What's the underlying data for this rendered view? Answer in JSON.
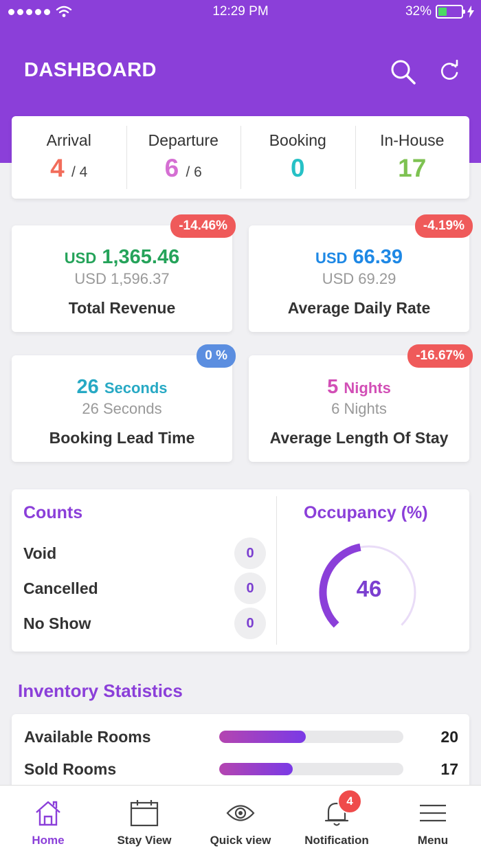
{
  "status_bar": {
    "time": "12:29 PM",
    "battery": "32%"
  },
  "header": {
    "title": "DASHBOARD",
    "search_icon": "search-icon",
    "refresh_icon": "refresh-icon"
  },
  "summary": {
    "arrival": {
      "label": "Arrival",
      "value": "4",
      "total": "/ 4",
      "color": "#f26d5b"
    },
    "departure": {
      "label": "Departure",
      "value": "6",
      "total": "/ 6",
      "color": "#d56fd3"
    },
    "booking": {
      "label": "Booking",
      "value": "0",
      "color": "#27c1c6"
    },
    "in_house": {
      "label": "In-House",
      "value": "17",
      "color": "#7ec252"
    }
  },
  "metrics": {
    "revenue": {
      "unit": "USD",
      "value": "1,365.46",
      "previous": "USD 1,596.37",
      "label": "Total Revenue",
      "change": "-14.46%",
      "color": "#25a35a"
    },
    "adr": {
      "unit": "USD",
      "value": "66.39",
      "previous": "USD 69.29",
      "label": "Average Daily Rate",
      "change": "-4.19%",
      "color": "#1e88e5"
    },
    "lead_time": {
      "value": "26",
      "unit": "Seconds",
      "previous": "26 Seconds",
      "label": "Booking Lead Time",
      "change": "0 %",
      "color": "#27a9c4"
    },
    "length_of_stay": {
      "value": "5",
      "unit": "Nights",
      "previous": "6 Nights",
      "label": "Average Length Of Stay",
      "change": "-16.67%",
      "color": "#d24fb6"
    }
  },
  "counts": {
    "title": "Counts",
    "items": [
      {
        "label": "Void",
        "value": "0"
      },
      {
        "label": "Cancelled",
        "value": "0"
      },
      {
        "label": "No Show",
        "value": "0"
      }
    ]
  },
  "occupancy": {
    "title": "Occupancy (%)",
    "value": "46",
    "percent": 46
  },
  "inventory": {
    "title": "Inventory Statistics",
    "items": [
      {
        "label": "Available Rooms",
        "value": "20",
        "fill": 0.47
      },
      {
        "label": "Sold Rooms",
        "value": "17",
        "fill": 0.4
      }
    ]
  },
  "tabs": [
    {
      "label": "Home",
      "icon": "home-icon",
      "active": true
    },
    {
      "label": "Stay View",
      "icon": "calendar-icon"
    },
    {
      "label": "Quick view",
      "icon": "eye-icon"
    },
    {
      "label": "Notification",
      "icon": "bell-icon",
      "badge": "4"
    },
    {
      "label": "Menu",
      "icon": "menu-icon"
    }
  ]
}
